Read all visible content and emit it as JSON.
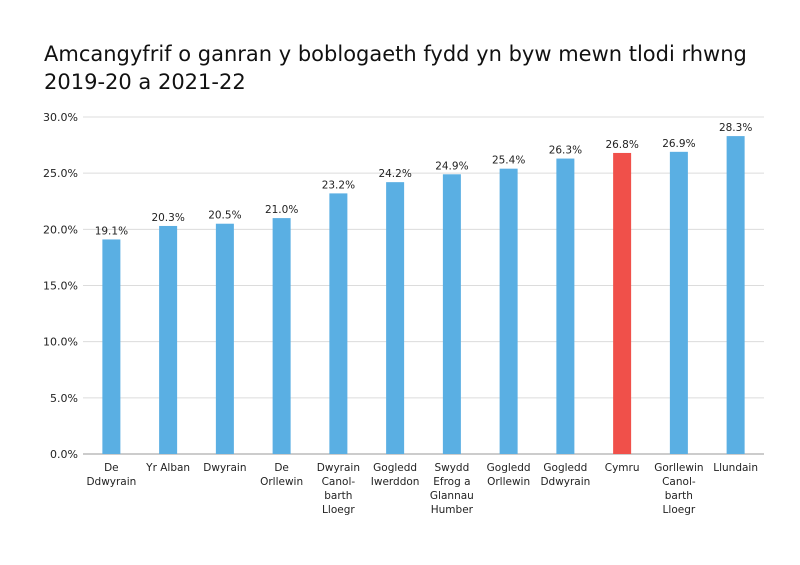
{
  "chart_data": {
    "type": "bar",
    "title_lines": [
      "Amcangyfrif o ganran y boblogaeth fydd yn byw mewn tlodi rhwng",
      "2019-20 a 2021-22"
    ],
    "categories": [
      [
        "De",
        "Ddwyrain"
      ],
      [
        "Yr Alban"
      ],
      [
        "Dwyrain"
      ],
      [
        "De",
        "Orllewin"
      ],
      [
        "Dwyrain",
        "Canol-",
        "barth",
        "Lloegr"
      ],
      [
        "Gogledd",
        "Iwerddon"
      ],
      [
        "Swydd",
        "Efrog a",
        "Glannau",
        "Humber"
      ],
      [
        "Gogledd",
        "Orllewin"
      ],
      [
        "Gogledd",
        "Ddwyrain"
      ],
      [
        "Cymru"
      ],
      [
        "Gorllewin",
        "Canol-",
        "barth",
        "Lloegr"
      ],
      [
        "Llundain"
      ]
    ],
    "values": [
      19.1,
      20.3,
      20.5,
      21.0,
      23.2,
      24.2,
      24.9,
      25.4,
      26.3,
      26.8,
      26.9,
      28.3
    ],
    "data_labels": [
      "19.1%",
      "20.3%",
      "20.5%",
      "21.0%",
      "23.2%",
      "24.2%",
      "24.9%",
      "25.4%",
      "26.3%",
      "26.8%",
      "26.9%",
      "28.3%"
    ],
    "y_ticks": [
      0,
      5,
      10,
      15,
      20,
      25,
      30
    ],
    "y_tick_labels": [
      "0.0%",
      "5.0%",
      "10.0%",
      "15.0%",
      "20.0%",
      "25.0%",
      "30.0%"
    ],
    "ylim": [
      0,
      30
    ],
    "grid": true,
    "colors": {
      "bar": "#5aafe3",
      "highlight": "#f0504a",
      "grid": "#dcdcdc",
      "axis": "#999999"
    },
    "highlight_category_index": 9
  }
}
